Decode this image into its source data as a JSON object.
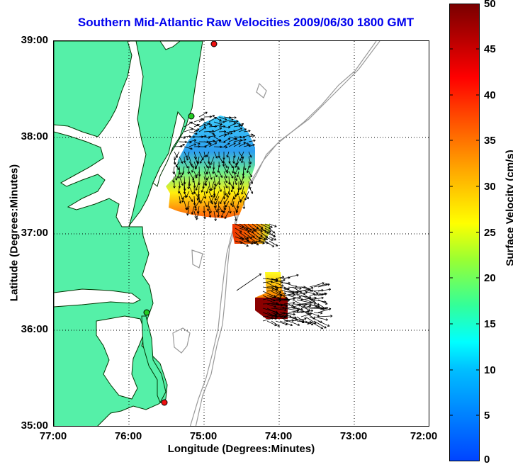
{
  "title": "Southern Mid-Atlantic Raw Velocities 2009/06/30 1800 GMT",
  "xlabel": "Longitude (Degrees:Minutes)",
  "ylabel": "Latitude (Degrees:Minutes)",
  "xticks": [
    "77:00",
    "76:00",
    "75:00",
    "74:00",
    "73:00",
    "72:00"
  ],
  "yticks": [
    "39:00",
    "38:00",
    "37:00",
    "36:00",
    "35:00"
  ],
  "colorbar": {
    "label": "Surface Velocity (cm/s)",
    "ticks": [
      "50",
      "45",
      "40",
      "35",
      "30",
      "25",
      "20",
      "15",
      "10",
      "5",
      "0"
    ],
    "range": [
      0,
      50
    ]
  },
  "colors": {
    "land": "#55f0a8",
    "coast": "#003300",
    "bathymetry": "#999999",
    "title": "#0000ee",
    "station_green": "#22cc22",
    "station_red": "#ee1111"
  }
}
